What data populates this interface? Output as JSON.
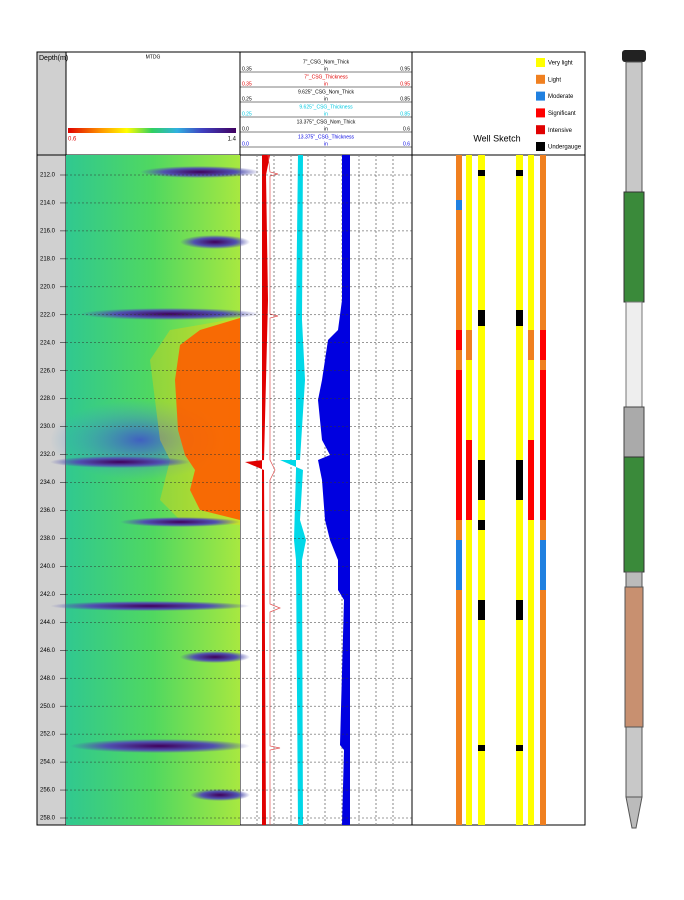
{
  "header": {
    "depth_label": "Depth(m)",
    "mtdg_title": "MTDG",
    "colorbar_min": "0.6",
    "colorbar_max": "1.4",
    "well_sketch_title": "Well Sketch"
  },
  "curves": [
    {
      "name": "7\"_CSG_Nom_Thick",
      "min": "0.35",
      "unit": "in",
      "max": "0.95",
      "color": "#000000"
    },
    {
      "name": "7\"_CSG_Thickness",
      "min": "0.35",
      "unit": "in",
      "max": "0.95",
      "color": "#e00000"
    },
    {
      "name": "9.625\"_CSG_Nom_Thick",
      "min": "0.25",
      "unit": "in",
      "max": "0.85",
      "color": "#000000"
    },
    {
      "name": "9.625\"_CSG_Thickness",
      "min": "0.25",
      "unit": "in",
      "max": "0.85",
      "color": "#00c8e0"
    },
    {
      "name": "13.375\"_CSG_Nom_Thick",
      "min": "0.0",
      "unit": "in",
      "max": "0.6",
      "color": "#000000"
    },
    {
      "name": "13.375\"_CSG_Thickness",
      "min": "0.0",
      "unit": "in",
      "max": "0.6",
      "color": "#0000e0"
    }
  ],
  "legend": [
    {
      "label": "Very light",
      "color": "#ffff00"
    },
    {
      "label": "Light",
      "color": "#f08020"
    },
    {
      "label": "Moderate",
      "color": "#2080e0"
    },
    {
      "label": "Significant",
      "color": "#ff0000"
    },
    {
      "label": "Intensive",
      "color": "#e00000"
    },
    {
      "label": "Undergauge",
      "color": "#000000"
    }
  ],
  "depth_ticks": [
    "212.0",
    "214.0",
    "216.0",
    "218.0",
    "220.0",
    "222.0",
    "224.0",
    "226.0",
    "228.0",
    "230.0",
    "232.0",
    "234.0",
    "236.0",
    "238.0",
    "240.0",
    "242.0",
    "244.0",
    "246.0",
    "248.0",
    "250.0",
    "252.0",
    "254.0",
    "256.0",
    "258.0"
  ]
}
